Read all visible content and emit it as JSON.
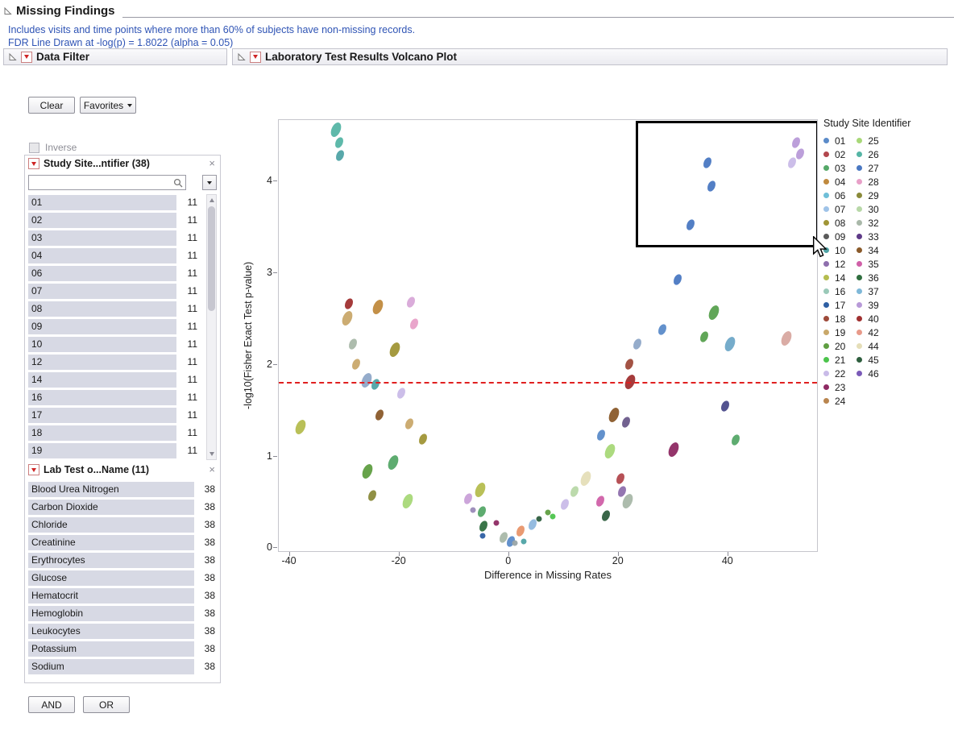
{
  "header": {
    "title": "Missing Findings",
    "note1": "Includes visits and time points where more than 60% of subjects have non-missing records.",
    "note2": "FDR Line Drawn at -log(p) = 1.8022 (alpha = 0.05)"
  },
  "data_filter": {
    "title": "Data Filter",
    "buttons": {
      "clear": "Clear",
      "favorites": "Favorites",
      "and": "AND",
      "or": "OR"
    },
    "inverse_label": "Inverse",
    "site_panel": {
      "title": "Study Site...ntifier (38)",
      "search_value": "",
      "rows": [
        {
          "label": "01",
          "count": "11"
        },
        {
          "label": "02",
          "count": "11"
        },
        {
          "label": "03",
          "count": "11"
        },
        {
          "label": "04",
          "count": "11"
        },
        {
          "label": "06",
          "count": "11"
        },
        {
          "label": "07",
          "count": "11"
        },
        {
          "label": "08",
          "count": "11"
        },
        {
          "label": "09",
          "count": "11"
        },
        {
          "label": "10",
          "count": "11"
        },
        {
          "label": "12",
          "count": "11"
        },
        {
          "label": "14",
          "count": "11"
        },
        {
          "label": "16",
          "count": "11"
        },
        {
          "label": "17",
          "count": "11"
        },
        {
          "label": "18",
          "count": "11"
        },
        {
          "label": "19",
          "count": "11"
        }
      ]
    },
    "lab_panel": {
      "title": "Lab Test o...Name (11)",
      "rows": [
        {
          "label": "Blood Urea Nitrogen",
          "count": "38"
        },
        {
          "label": "Carbon Dioxide",
          "count": "38"
        },
        {
          "label": "Chloride",
          "count": "38"
        },
        {
          "label": "Creatinine",
          "count": "38"
        },
        {
          "label": "Erythrocytes",
          "count": "38"
        },
        {
          "label": "Glucose",
          "count": "38"
        },
        {
          "label": "Hematocrit",
          "count": "38"
        },
        {
          "label": "Hemoglobin",
          "count": "38"
        },
        {
          "label": "Leukocytes",
          "count": "38"
        },
        {
          "label": "Potassium",
          "count": "38"
        },
        {
          "label": "Sodium",
          "count": "38"
        }
      ]
    }
  },
  "volcano": {
    "title": "Laboratory Test Results Volcano Plot"
  },
  "chart_data": {
    "type": "scatter",
    "title": "Laboratory Test Results Volcano Plot",
    "xlabel": "Difference in Missing Rates",
    "ylabel": "-log10(Fisher Exact Test p-value)",
    "xlim": [
      -42,
      56.5
    ],
    "ylim": [
      -0.05,
      4.67
    ],
    "x_ticks": [
      -40,
      -20,
      0,
      20,
      40
    ],
    "y_ticks": [
      0,
      1,
      2,
      3,
      4
    ],
    "fdr_line": {
      "y": 1.8022,
      "color": "#e02020",
      "style": "dashed"
    },
    "selection_box": {
      "x0": 23.3,
      "x1": 55.9,
      "y0": 3.33,
      "y1": 4.66
    },
    "legend": {
      "title": "Study Site Identifier",
      "columns": [
        [
          {
            "label": "01",
            "color": "#5B8BC9"
          },
          {
            "label": "02",
            "color": "#B2474D"
          },
          {
            "label": "03",
            "color": "#55A868"
          },
          {
            "label": "04",
            "color": "#C08A3E"
          },
          {
            "label": "06",
            "color": "#6FBFD8"
          },
          {
            "label": "07",
            "color": "#9FC3E8"
          },
          {
            "label": "08",
            "color": "#A09536"
          },
          {
            "label": "09",
            "color": "#5A5A5A"
          },
          {
            "label": "10",
            "color": "#4FA3A5"
          },
          {
            "label": "12",
            "color": "#8E6FAD"
          },
          {
            "label": "14",
            "color": "#B5BD4F"
          },
          {
            "label": "16",
            "color": "#9AC9B8"
          },
          {
            "label": "17",
            "color": "#2E5FA3"
          },
          {
            "label": "18",
            "color": "#9E4A3A"
          },
          {
            "label": "19",
            "color": "#C9A86A"
          },
          {
            "label": "20",
            "color": "#5F9E41"
          },
          {
            "label": "21",
            "color": "#4CC44C"
          },
          {
            "label": "22",
            "color": "#C9BBE8"
          },
          {
            "label": "23",
            "color": "#8E2A63"
          },
          {
            "label": "24",
            "color": "#B9854F"
          }
        ],
        [
          {
            "label": "25",
            "color": "#A8D878"
          },
          {
            "label": "26",
            "color": "#55B5A5"
          },
          {
            "label": "27",
            "color": "#4A78C2"
          },
          {
            "label": "28",
            "color": "#E8A0C8"
          },
          {
            "label": "29",
            "color": "#8A8A3A"
          },
          {
            "label": "30",
            "color": "#B8D8A8"
          },
          {
            "label": "32",
            "color": "#A9B8A9"
          },
          {
            "label": "33",
            "color": "#5E3A87"
          },
          {
            "label": "34",
            "color": "#8A5A2A"
          },
          {
            "label": "35",
            "color": "#D060A8"
          },
          {
            "label": "36",
            "color": "#2F6E3F"
          },
          {
            "label": "37",
            "color": "#7FB8D8"
          },
          {
            "label": "39",
            "color": "#B89AD8"
          },
          {
            "label": "40",
            "color": "#A03030"
          },
          {
            "label": "42",
            "color": "#E89A8A"
          },
          {
            "label": "44",
            "color": "#E5DEB8"
          },
          {
            "label": "45",
            "color": "#2E5E3E"
          },
          {
            "label": "46",
            "color": "#7A5AB8"
          }
        ]
      ]
    },
    "points": [
      [
        -31.6,
        4.56,
        "#55B5A5",
        3
      ],
      [
        -31.0,
        4.42,
        "#55B5A5",
        2
      ],
      [
        -30.8,
        4.28,
        "#4FA3A5",
        2
      ],
      [
        36.5,
        4.2,
        "#4A78C2",
        2
      ],
      [
        37.2,
        3.95,
        "#4A78C2",
        2
      ],
      [
        33.4,
        3.52,
        "#4A78C2",
        2
      ],
      [
        52.6,
        4.42,
        "#B89AD8",
        2
      ],
      [
        53.4,
        4.3,
        "#B89AD8",
        2
      ],
      [
        52.0,
        4.2,
        "#C9BBE8",
        2
      ],
      [
        31.0,
        2.92,
        "#4A78C2",
        2
      ],
      [
        -29.2,
        2.66,
        "#A03030",
        2
      ],
      [
        -29.5,
        2.5,
        "#C9A86A",
        3
      ],
      [
        -23.8,
        2.62,
        "#C08A3E",
        3
      ],
      [
        -17.8,
        2.68,
        "#D8A8D8",
        2
      ],
      [
        -17.2,
        2.44,
        "#E8A0C8",
        2
      ],
      [
        -28.5,
        2.22,
        "#A9B8A9",
        2
      ],
      [
        -27.8,
        2.0,
        "#C9A86A",
        2
      ],
      [
        -20.8,
        2.16,
        "#A09536",
        3
      ],
      [
        -26.0,
        1.82,
        "#8FA8C8",
        3
      ],
      [
        -24.3,
        1.78,
        "#4FA3A5",
        2
      ],
      [
        -19.6,
        1.68,
        "#C9BBE8",
        2
      ],
      [
        -23.6,
        1.44,
        "#8A5A2A",
        2
      ],
      [
        -18.1,
        1.34,
        "#C9A86A",
        2
      ],
      [
        -15.6,
        1.18,
        "#A09536",
        2
      ],
      [
        -38.0,
        1.31,
        "#B5BD4F",
        3
      ],
      [
        -25.8,
        0.82,
        "#5F9E41",
        3
      ],
      [
        -24.9,
        0.56,
        "#8A8A3A",
        2
      ],
      [
        -21.1,
        0.92,
        "#55A868",
        3
      ],
      [
        -18.4,
        0.5,
        "#A8D878",
        3
      ],
      [
        -7.4,
        0.52,
        "#C9A0D8",
        2
      ],
      [
        -6.5,
        0.4,
        "#9A8AB8",
        1
      ],
      [
        -5.2,
        0.62,
        "#B5BD4F",
        3
      ],
      [
        -4.8,
        0.38,
        "#55A868",
        2
      ],
      [
        -4.5,
        0.22,
        "#2F6E3F",
        2
      ],
      [
        -4.7,
        0.12,
        "#2E5FA3",
        1
      ],
      [
        -2.2,
        0.26,
        "#8E2A63",
        1
      ],
      [
        -0.8,
        0.1,
        "#A9B8A9",
        2
      ],
      [
        0.4,
        0.06,
        "#5B8BC9",
        2
      ],
      [
        1.2,
        0.04,
        "#9AA5A8",
        1
      ],
      [
        2.3,
        0.17,
        "#E8956A",
        2
      ],
      [
        2.8,
        0.06,
        "#4FA3A5",
        1
      ],
      [
        4.4,
        0.24,
        "#8FB8DE",
        2
      ],
      [
        5.6,
        0.3,
        "#2E5E3E",
        1
      ],
      [
        7.3,
        0.37,
        "#5F9E41",
        1
      ],
      [
        8.2,
        0.33,
        "#4CC44C",
        1
      ],
      [
        10.3,
        0.46,
        "#C9BBE8",
        2
      ],
      [
        12.1,
        0.6,
        "#B8D8A8",
        2
      ],
      [
        14.2,
        0.74,
        "#E5DEB8",
        3
      ],
      [
        16.9,
        0.5,
        "#D060A8",
        2
      ],
      [
        17.9,
        0.34,
        "#2E5E3E",
        2
      ],
      [
        20.5,
        0.74,
        "#B2474D",
        2
      ],
      [
        20.8,
        0.6,
        "#8E6FAD",
        2
      ],
      [
        21.8,
        0.5,
        "#A9B8A9",
        3
      ],
      [
        18.6,
        1.04,
        "#A8D878",
        3
      ],
      [
        17.0,
        1.22,
        "#5B8BC9",
        2
      ],
      [
        19.4,
        1.44,
        "#8A5A2A",
        3
      ],
      [
        21.6,
        1.36,
        "#6A5A8A",
        2
      ],
      [
        30.2,
        1.06,
        "#8E2A63",
        3
      ],
      [
        41.6,
        1.17,
        "#55A868",
        2
      ],
      [
        39.7,
        1.54,
        "#4A4A8A",
        2
      ],
      [
        22.3,
        1.8,
        "#A03030",
        3
      ],
      [
        22.1,
        2.0,
        "#9E4A3A",
        2
      ],
      [
        23.6,
        2.22,
        "#8FA8C8",
        2
      ],
      [
        28.2,
        2.38,
        "#5B8BC9",
        2
      ],
      [
        35.8,
        2.3,
        "#59A14F",
        2
      ],
      [
        37.6,
        2.56,
        "#59A14F",
        3
      ],
      [
        40.6,
        2.22,
        "#6FA8C8",
        3
      ],
      [
        50.9,
        2.28,
        "#D8A8A0",
        3
      ]
    ]
  }
}
